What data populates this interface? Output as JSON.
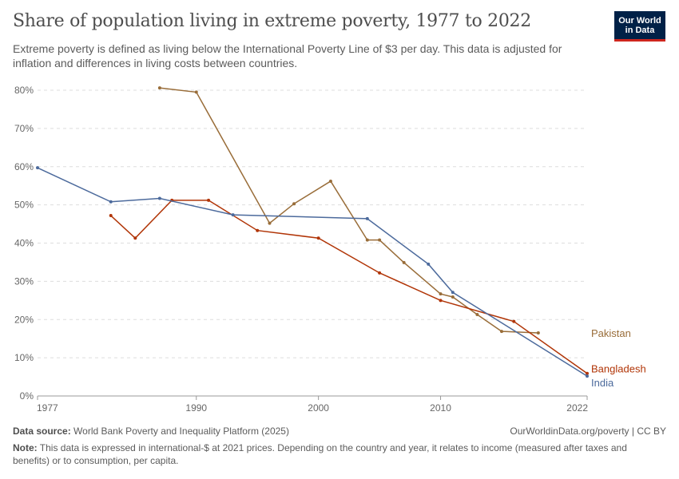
{
  "title": "Share of population living in extreme poverty, 1977 to 2022",
  "subtitle": "Extreme poverty is defined as living below the International Poverty Line of $3 per day. This data is adjusted for inflation and differences in living costs between countries.",
  "logo": {
    "line1": "Our World",
    "line2": "in Data"
  },
  "footer": {
    "source_label": "Data source:",
    "source_text": "World Bank Poverty and Inequality Platform (2025)",
    "url_text": "OurWorldinData.org/poverty | CC BY",
    "note_label": "Note:",
    "note_text": "This data is expressed in international-$ at 2021 prices. Depending on the country and year, it relates to income (measured after taxes and benefits) or to consumption, per capita."
  },
  "chart_data": {
    "type": "line",
    "title": "Share of population living in extreme poverty, 1977 to 2022",
    "xlabel": "",
    "ylabel": "",
    "xlim": [
      1977,
      2022
    ],
    "ylim": [
      0,
      80
    ],
    "x_ticks": [
      "1977",
      "1990",
      "2000",
      "2010",
      "2022"
    ],
    "x_tick_values": [
      1977,
      1990,
      2000,
      2010,
      2022
    ],
    "y_ticks": [
      "0%",
      "10%",
      "20%",
      "30%",
      "40%",
      "50%",
      "60%",
      "70%",
      "80%"
    ],
    "y_tick_values": [
      0,
      10,
      20,
      30,
      40,
      50,
      60,
      70,
      80
    ],
    "grid": "horizontal dashed",
    "legend": "right, labels at line ends",
    "series": [
      {
        "name": "Pakistan",
        "color": "#996d39",
        "x": [
          1987,
          1990,
          1996,
          1998,
          2001,
          2004,
          2005,
          2007,
          2010,
          2011,
          2013,
          2015,
          2018
        ],
        "y": [
          80.6,
          79.5,
          45.2,
          50.3,
          56.2,
          40.8,
          40.8,
          34.9,
          26.7,
          25.9,
          21.3,
          16.9,
          16.5
        ]
      },
      {
        "name": "Bangladesh",
        "color": "#b13507",
        "x": [
          1983,
          1985,
          1988,
          1991,
          1995,
          2000,
          2005,
          2010,
          2016,
          2022
        ],
        "y": [
          47.2,
          41.3,
          51.2,
          51.2,
          43.3,
          41.3,
          32.2,
          25.0,
          19.5,
          5.9
        ]
      },
      {
        "name": "India",
        "color": "#4c6a9c",
        "x": [
          1977,
          1983,
          1987,
          1993,
          2004,
          2009,
          2011,
          2022
        ],
        "y": [
          59.7,
          50.8,
          51.7,
          47.4,
          46.4,
          34.5,
          27.1,
          5.2
        ]
      }
    ],
    "label_order_y": {
      "Pakistan": 16.5,
      "Bangladesh": 7.2,
      "India": 3.5
    }
  }
}
